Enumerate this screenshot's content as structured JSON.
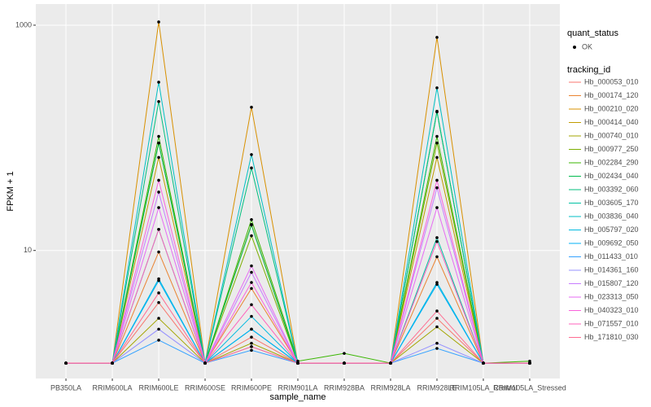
{
  "chart_data": {
    "type": "line",
    "log_y": true,
    "grid": true,
    "legend_position": "right",
    "point_color": "#000000",
    "x_label": "sample_name",
    "y_label": "FPKM + 1",
    "point_legend_title": "quant_status",
    "point_legend_entries": [
      "OK"
    ],
    "legend_title": "tracking_id",
    "categories": [
      "PB350LA",
      "RRIM600LA",
      "RRIM600LE",
      "RRIM600SE",
      "RRIM600PE",
      "RRIM901LA",
      "RRIM928BA",
      "RRIM928LA",
      "RRIM928LE",
      "RRIM105LA_Control",
      "RRIM105LA_Stressed"
    ],
    "ylim": [
      0.73,
      1540
    ],
    "yticks": [
      10,
      1000
    ],
    "series": [
      {
        "name": "Hb_000053_010",
        "color": "#F8766D",
        "values": [
          1,
          1,
          3.45,
          1,
          1.7,
          1,
          1,
          1,
          2.5,
          1,
          1
        ]
      },
      {
        "name": "Hb_000174_120",
        "color": "#EA8331",
        "values": [
          1,
          1,
          9.7,
          1,
          4.6,
          1,
          1,
          1,
          8.8,
          1,
          1
        ]
      },
      {
        "name": "Hb_000210_020",
        "color": "#D89000",
        "values": [
          1,
          1,
          1069,
          1,
          187,
          1,
          1,
          1,
          780,
          1,
          1
        ]
      },
      {
        "name": "Hb_000414_040",
        "color": "#C09B00",
        "values": [
          1,
          1,
          67,
          1,
          17,
          1,
          1,
          1,
          67,
          1,
          1
        ]
      },
      {
        "name": "Hb_000740_010",
        "color": "#A3A500",
        "values": [
          1,
          1,
          2.5,
          1,
          1.5,
          1,
          1,
          1,
          2.1,
          1,
          1
        ]
      },
      {
        "name": "Hb_000977_250",
        "color": "#7CAE00",
        "values": [
          1,
          1,
          90,
          1,
          13.5,
          1,
          1,
          1,
          90,
          1,
          1
        ]
      },
      {
        "name": "Hb_002284_290",
        "color": "#39B600",
        "values": [
          1,
          1,
          103,
          1,
          18.8,
          1.04,
          1.22,
          1,
          103,
          1,
          1.04
        ]
      },
      {
        "name": "Hb_002434_040",
        "color": "#00BB4E",
        "values": [
          1,
          1,
          90,
          1,
          16.8,
          1,
          1,
          1,
          170,
          1,
          1
        ]
      },
      {
        "name": "Hb_003392_060",
        "color": "#00BF7D",
        "values": [
          1,
          1,
          210,
          1,
          54,
          1,
          1,
          1,
          172,
          1,
          1
        ]
      },
      {
        "name": "Hb_003605_170",
        "color": "#00C1A3",
        "values": [
          1,
          1,
          15.4,
          1,
          2,
          1,
          1,
          1,
          13,
          1,
          1
        ]
      },
      {
        "name": "Hb_003836_040",
        "color": "#00BFC4",
        "values": [
          1,
          1,
          312,
          1,
          71,
          1,
          1,
          1,
          278,
          1,
          1
        ]
      },
      {
        "name": "Hb_005797_020",
        "color": "#00BAE0",
        "values": [
          1,
          1,
          5.6,
          1,
          2.6,
          1,
          1,
          1,
          5.2,
          1,
          1
        ]
      },
      {
        "name": "Hb_009692_050",
        "color": "#00B0F6",
        "values": [
          1,
          1,
          5.4,
          1,
          2,
          1,
          1,
          1,
          5,
          1,
          1
        ]
      },
      {
        "name": "Hb_011433_010",
        "color": "#35A2FF",
        "values": [
          1,
          1,
          1.6,
          1,
          1.3,
          1,
          1,
          1,
          1.35,
          1,
          1
        ]
      },
      {
        "name": "Hb_014361_160",
        "color": "#9590FF",
        "values": [
          1,
          1,
          2,
          1,
          1.4,
          1,
          1,
          1,
          1.5,
          1,
          1
        ]
      },
      {
        "name": "Hb_015807_120",
        "color": "#C77CFF",
        "values": [
          1,
          1,
          33,
          1,
          6.4,
          1,
          1,
          1,
          36,
          1,
          1
        ]
      },
      {
        "name": "Hb_023313_050",
        "color": "#E76BF3",
        "values": [
          1,
          1,
          24,
          1,
          7.3,
          1,
          1,
          1,
          24,
          1,
          1
        ]
      },
      {
        "name": "Hb_040323_010",
        "color": "#FA62DB",
        "values": [
          1,
          1,
          42,
          1,
          5.2,
          1,
          1,
          1,
          42,
          1,
          1
        ]
      },
      {
        "name": "Hb_071557_010",
        "color": "#FF62BC",
        "values": [
          1,
          1,
          15.4,
          1,
          3.3,
          1,
          1,
          1,
          12,
          1,
          1
        ]
      },
      {
        "name": "Hb_171810_030",
        "color": "#FF6C91",
        "values": [
          1,
          1,
          4.2,
          1,
          1.4,
          1,
          1,
          1,
          2.9,
          1,
          1
        ]
      }
    ]
  }
}
